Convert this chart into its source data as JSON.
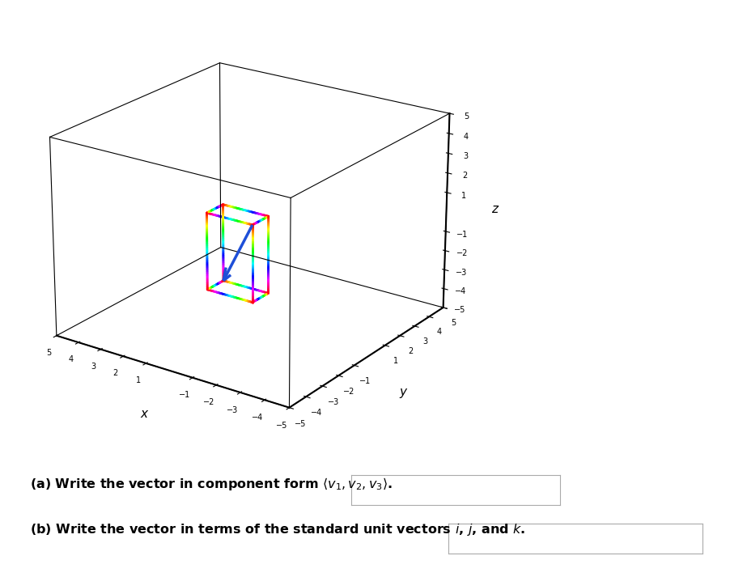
{
  "vector": [
    2,
    1,
    -4
  ],
  "axis_lim": [
    -5,
    5
  ],
  "tick_vals": [
    -5,
    -4,
    -3,
    -2,
    -1,
    1,
    2,
    3,
    4,
    5
  ],
  "vector_color": "#1e4fd8",
  "background_color": "#ffffff",
  "title_a": "(a) Write the vector in component form $\\langle v_1, v_2, v_3\\rangle$.",
  "title_b": "(b) Write the vector in terms of the standard unit vectors $i$, $j$, and $k$.",
  "fig_width": 9.23,
  "fig_height": 7.13,
  "elev": 22,
  "azim": -55
}
